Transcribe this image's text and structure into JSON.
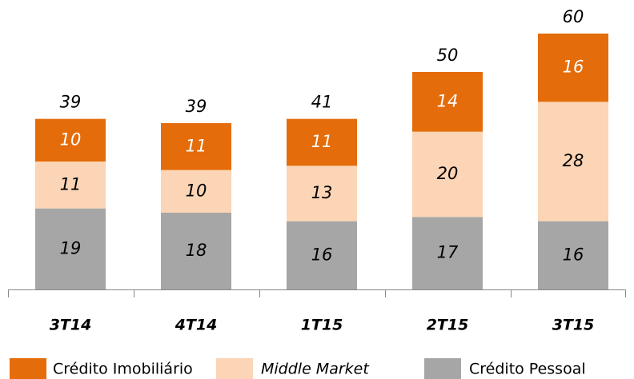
{
  "chart_data": {
    "type": "stacked_bar",
    "categories": [
      "3T14",
      "4T14",
      "1T15",
      "2T15",
      "3T15"
    ],
    "series": [
      {
        "name": "Crédito Pessoal",
        "color": "#a6a6a6",
        "values": [
          19,
          18,
          16,
          17,
          16
        ]
      },
      {
        "name": "Middle Market",
        "color": "#fbd5b5",
        "values": [
          11,
          10,
          13,
          20,
          28
        ]
      },
      {
        "name": "Crédito Imobiliário",
        "color": "#e46c0a",
        "values": [
          10,
          11,
          11,
          14,
          16
        ]
      }
    ],
    "totals": [
      39,
      39,
      41,
      50,
      60
    ]
  }
}
